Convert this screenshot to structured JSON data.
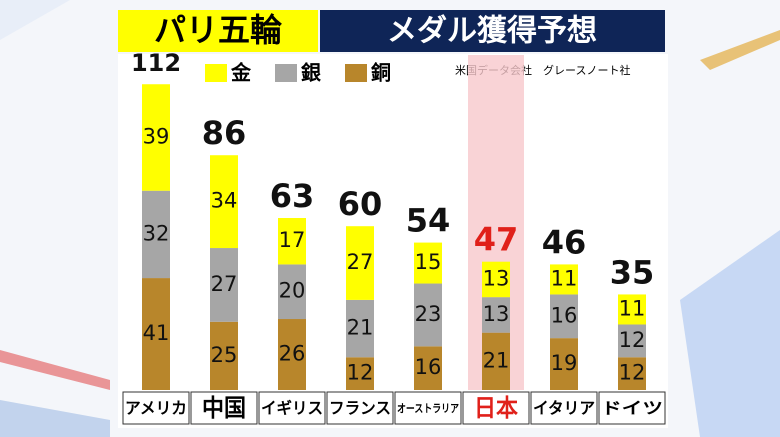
{
  "chart_data": {
    "type": "stacked_bar",
    "title": "パリ五輪",
    "subtitle": "メダル獲得予想",
    "source": "米国データ会社　グレースノート社",
    "categories": [
      "アメリカ",
      "中国",
      "イギリス",
      "フランス",
      "オーストラリア",
      "日本",
      "イタリア",
      "ドイツ"
    ],
    "totals": [
      112,
      86,
      63,
      60,
      54,
      47,
      46,
      35
    ],
    "series": [
      {
        "name": "金",
        "color": "#ffff00",
        "values": [
          39,
          34,
          17,
          27,
          15,
          13,
          11,
          11
        ]
      },
      {
        "name": "銀",
        "color": "#a6a6a6",
        "values": [
          32,
          27,
          20,
          21,
          23,
          13,
          16,
          12
        ]
      },
      {
        "name": "銅",
        "color": "#b8862b",
        "values": [
          41,
          25,
          26,
          12,
          16,
          21,
          19,
          12
        ]
      }
    ]
  }
}
